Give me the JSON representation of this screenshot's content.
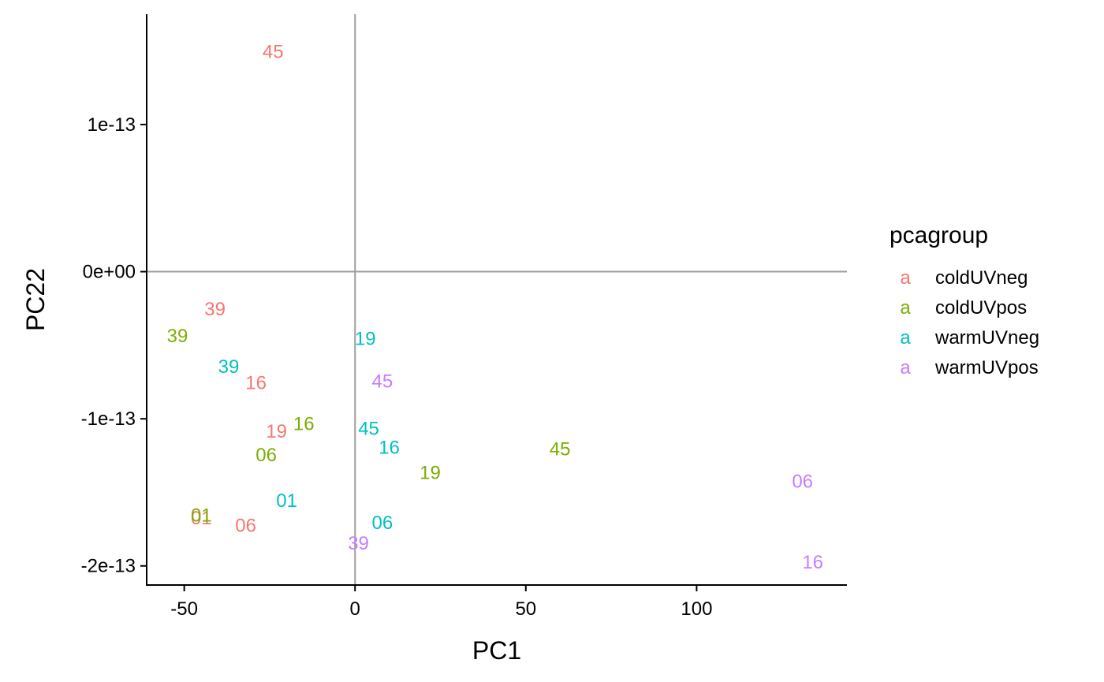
{
  "chart_data": {
    "type": "scatter",
    "xlabel": "PC1",
    "ylabel": "PC22",
    "xlim": [
      -61,
      144
    ],
    "ylim": [
      -2.13e-13,
      1.75e-13
    ],
    "x_ticks": [
      {
        "value": -50,
        "label": "-50"
      },
      {
        "value": 0,
        "label": "0"
      },
      {
        "value": 50,
        "label": "50"
      },
      {
        "value": 100,
        "label": "100"
      }
    ],
    "y_ticks": [
      {
        "value": 1e-13,
        "label": "1e-13"
      },
      {
        "value": 0,
        "label": "0e+00"
      },
      {
        "value": -1e-13,
        "label": "-1e-13"
      },
      {
        "value": -2e-13,
        "label": "-2e-13"
      }
    ],
    "reference_lines": {
      "x": 0,
      "y": 0,
      "color": "#9e9e9e"
    },
    "grid": false,
    "legend": {
      "title": "pcagroup",
      "placement": "right",
      "key_glyph": "a"
    },
    "series": [
      {
        "name": "coldUVneg",
        "color": "#F8766D",
        "points": [
          {
            "label": "45",
            "x": -24,
            "y": 1.5e-13
          },
          {
            "label": "39",
            "x": -41,
            "y": -2.5e-14
          },
          {
            "label": "16",
            "x": -29,
            "y": -7.5e-14
          },
          {
            "label": "19",
            "x": -23,
            "y": -1.08e-13
          },
          {
            "label": "01",
            "x": -45,
            "y": -1.67e-13
          },
          {
            "label": "06",
            "x": -32,
            "y": -1.72e-13
          }
        ]
      },
      {
        "name": "coldUVpos",
        "color": "#7CAE00",
        "points": [
          {
            "label": "39",
            "x": -52,
            "y": -4.3e-14
          },
          {
            "label": "16",
            "x": -15,
            "y": -1.03e-13
          },
          {
            "label": "06",
            "x": -26,
            "y": -1.24e-13
          },
          {
            "label": "45",
            "x": 60,
            "y": -1.2e-13
          },
          {
            "label": "19",
            "x": 22,
            "y": -1.36e-13
          },
          {
            "label": "01",
            "x": -45,
            "y": -1.65e-13
          }
        ]
      },
      {
        "name": "warmUVneg",
        "color": "#00BFC4",
        "points": [
          {
            "label": "19",
            "x": 3,
            "y": -4.5e-14
          },
          {
            "label": "39",
            "x": -37,
            "y": -6.4e-14
          },
          {
            "label": "45",
            "x": 4,
            "y": -1.06e-13
          },
          {
            "label": "16",
            "x": 10,
            "y": -1.19e-13
          },
          {
            "label": "01",
            "x": -20,
            "y": -1.55e-13
          },
          {
            "label": "06",
            "x": 8,
            "y": -1.7e-13
          }
        ]
      },
      {
        "name": "warmUVpos",
        "color": "#C77CFF",
        "points": [
          {
            "label": "45",
            "x": 8,
            "y": -7.4e-14
          },
          {
            "label": "06",
            "x": 131,
            "y": -1.42e-13
          },
          {
            "label": "16",
            "x": 134,
            "y": -1.97e-13
          },
          {
            "label": "39",
            "x": 1,
            "y": -1.84e-13
          }
        ]
      }
    ]
  }
}
